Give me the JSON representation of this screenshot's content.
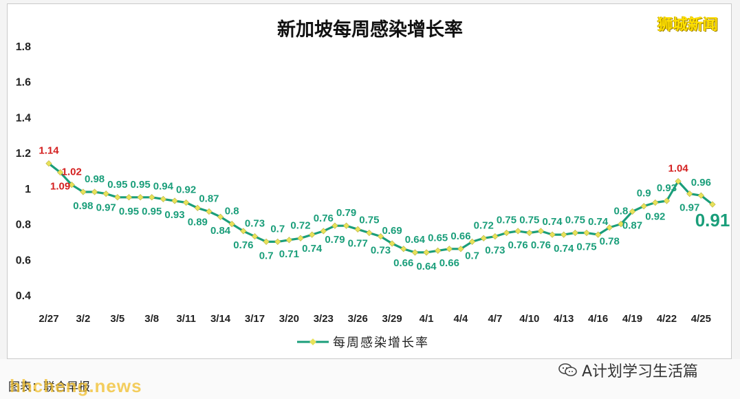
{
  "brand": "狮城新闻",
  "watermark": "hhcheng.news",
  "footer": {
    "source": "图表：联合早报",
    "wechat_account": "A计划学习生活篇"
  },
  "chart_data": {
    "type": "line",
    "title": "新加坡每周感染增长率",
    "series_name": "每周感染增长率",
    "ylim": [
      0.4,
      1.8
    ],
    "yticks": [
      "0.4",
      "0.6",
      "0.8",
      "1",
      "1.2",
      "1.4",
      "1.6",
      "1.8"
    ],
    "xticks": [
      "2/27",
      "3/2",
      "3/5",
      "3/8",
      "3/11",
      "3/14",
      "3/17",
      "3/20",
      "3/23",
      "3/26",
      "3/29",
      "4/1",
      "4/4",
      "4/7",
      "4/10",
      "4/13",
      "4/16",
      "4/19",
      "4/22",
      "4/25"
    ],
    "legend_position": "bottom-center",
    "grid": false,
    "colors": {
      "line": "#1a9e7a",
      "marker": "#e8e25a",
      "label": "#1a9e7a",
      "highlight": "#d42020"
    },
    "x": [
      "2/27",
      "2/28",
      "3/1",
      "3/2",
      "3/3",
      "3/4",
      "3/5",
      "3/6",
      "3/7",
      "3/8",
      "3/9",
      "3/10",
      "3/11",
      "3/12",
      "3/13",
      "3/14",
      "3/15",
      "3/16",
      "3/17",
      "3/18",
      "3/19",
      "3/20",
      "3/21",
      "3/22",
      "3/23",
      "3/24",
      "3/25",
      "3/26",
      "3/27",
      "3/28",
      "3/29",
      "3/30",
      "3/31",
      "4/1",
      "4/2",
      "4/3",
      "4/4",
      "4/5",
      "4/6",
      "4/7",
      "4/8",
      "4/9",
      "4/10",
      "4/11",
      "4/12",
      "4/13",
      "4/14",
      "4/15",
      "4/16",
      "4/17",
      "4/18",
      "4/19",
      "4/20",
      "4/21",
      "4/22",
      "4/23",
      "4/24",
      "4/25",
      "4/26"
    ],
    "values": [
      1.14,
      1.09,
      1.02,
      0.98,
      0.98,
      0.97,
      0.95,
      0.95,
      0.95,
      0.95,
      0.94,
      0.93,
      0.92,
      0.89,
      0.87,
      0.84,
      0.8,
      0.76,
      0.73,
      0.7,
      0.7,
      0.71,
      0.72,
      0.74,
      0.76,
      0.79,
      0.79,
      0.77,
      0.75,
      0.73,
      0.69,
      0.66,
      0.64,
      0.64,
      0.65,
      0.66,
      0.66,
      0.7,
      0.72,
      0.73,
      0.75,
      0.76,
      0.75,
      0.76,
      0.74,
      0.74,
      0.75,
      0.75,
      0.74,
      0.78,
      0.8,
      0.87,
      0.9,
      0.92,
      0.93,
      1.04,
      0.97,
      0.96,
      0.91
    ],
    "labels": [
      {
        "i": 0,
        "text": "1.14",
        "pos": "above",
        "color": "red"
      },
      {
        "i": 1,
        "text": "1.09",
        "pos": "below",
        "color": "red"
      },
      {
        "i": 2,
        "text": "1.02",
        "pos": "above",
        "color": "red"
      },
      {
        "i": 3,
        "text": "0.98",
        "pos": "below"
      },
      {
        "i": 4,
        "text": "0.98",
        "pos": "above"
      },
      {
        "i": 5,
        "text": "0.97",
        "pos": "below"
      },
      {
        "i": 6,
        "text": "0.95",
        "pos": "above"
      },
      {
        "i": 7,
        "text": "0.95",
        "pos": "below"
      },
      {
        "i": 8,
        "text": "0.95",
        "pos": "above"
      },
      {
        "i": 9,
        "text": "0.95",
        "pos": "below"
      },
      {
        "i": 10,
        "text": "0.94",
        "pos": "above"
      },
      {
        "i": 11,
        "text": "0.93",
        "pos": "below"
      },
      {
        "i": 12,
        "text": "0.92",
        "pos": "above"
      },
      {
        "i": 13,
        "text": "0.89",
        "pos": "below"
      },
      {
        "i": 14,
        "text": "0.87",
        "pos": "above"
      },
      {
        "i": 15,
        "text": "0.84",
        "pos": "below"
      },
      {
        "i": 16,
        "text": "0.8",
        "pos": "above"
      },
      {
        "i": 17,
        "text": "0.76",
        "pos": "below"
      },
      {
        "i": 18,
        "text": "0.73",
        "pos": "above"
      },
      {
        "i": 19,
        "text": "0.7",
        "pos": "below"
      },
      {
        "i": 20,
        "text": "0.7",
        "pos": "above"
      },
      {
        "i": 21,
        "text": "0.71",
        "pos": "below"
      },
      {
        "i": 22,
        "text": "0.72",
        "pos": "above"
      },
      {
        "i": 23,
        "text": "0.74",
        "pos": "below"
      },
      {
        "i": 24,
        "text": "0.76",
        "pos": "above"
      },
      {
        "i": 25,
        "text": "0.79",
        "pos": "below"
      },
      {
        "i": 26,
        "text": "0.79",
        "pos": "above"
      },
      {
        "i": 27,
        "text": "0.77",
        "pos": "below"
      },
      {
        "i": 28,
        "text": "0.75",
        "pos": "above"
      },
      {
        "i": 29,
        "text": "0.73",
        "pos": "below"
      },
      {
        "i": 30,
        "text": "0.69",
        "pos": "above"
      },
      {
        "i": 31,
        "text": "0.66",
        "pos": "below"
      },
      {
        "i": 32,
        "text": "0.64",
        "pos": "above"
      },
      {
        "i": 33,
        "text": "0.64",
        "pos": "below"
      },
      {
        "i": 34,
        "text": "0.65",
        "pos": "above"
      },
      {
        "i": 35,
        "text": "0.66",
        "pos": "below"
      },
      {
        "i": 36,
        "text": "0.66",
        "pos": "above"
      },
      {
        "i": 37,
        "text": "0.7",
        "pos": "below"
      },
      {
        "i": 38,
        "text": "0.72",
        "pos": "above"
      },
      {
        "i": 39,
        "text": "0.73",
        "pos": "below"
      },
      {
        "i": 40,
        "text": "0.75",
        "pos": "above"
      },
      {
        "i": 41,
        "text": "0.76",
        "pos": "below"
      },
      {
        "i": 42,
        "text": "0.75",
        "pos": "above"
      },
      {
        "i": 43,
        "text": "0.76",
        "pos": "below"
      },
      {
        "i": 44,
        "text": "0.74",
        "pos": "above"
      },
      {
        "i": 45,
        "text": "0.74",
        "pos": "below"
      },
      {
        "i": 46,
        "text": "0.75",
        "pos": "above"
      },
      {
        "i": 47,
        "text": "0.75",
        "pos": "below"
      },
      {
        "i": 48,
        "text": "0.74",
        "pos": "above"
      },
      {
        "i": 49,
        "text": "0.78",
        "pos": "below"
      },
      {
        "i": 50,
        "text": "0.8",
        "pos": "above"
      },
      {
        "i": 51,
        "text": "0.87",
        "pos": "below"
      },
      {
        "i": 52,
        "text": "0.9",
        "pos": "above"
      },
      {
        "i": 53,
        "text": "0.92",
        "pos": "below"
      },
      {
        "i": 54,
        "text": "0.93",
        "pos": "above"
      },
      {
        "i": 55,
        "text": "1.04",
        "pos": "above",
        "color": "red"
      },
      {
        "i": 56,
        "text": "0.97",
        "pos": "below"
      },
      {
        "i": 57,
        "text": "0.96",
        "pos": "above"
      },
      {
        "i": 58,
        "text": "0.91",
        "pos": "below",
        "big": true
      }
    ]
  }
}
